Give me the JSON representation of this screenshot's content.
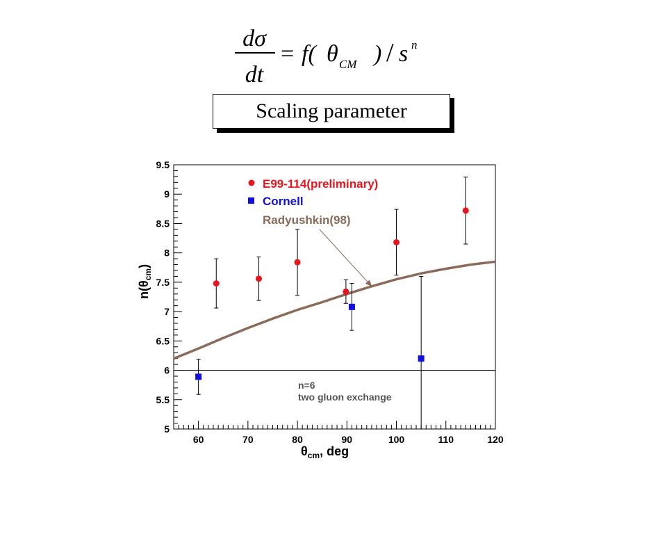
{
  "formula": {
    "numerator": "dσ",
    "denominator": "dt",
    "equals": "=",
    "f_open": "f(",
    "theta": "θ",
    "theta_sub": "CM",
    "close": ")",
    "slash": "/",
    "s": "s",
    "n_sup": "n"
  },
  "slide_title": "Scaling parameter",
  "chart_data": {
    "type": "scatter",
    "xlabel": "θcm, deg",
    "xlabel_parts": {
      "sym": "θ",
      "sub": "cm",
      "rest": ", deg"
    },
    "ylabel": "n(θcm)",
    "ylabel_parts": {
      "pre": "n(",
      "sym": "θ",
      "sub": "cm",
      "post": ")"
    },
    "xlim": [
      55,
      120
    ],
    "ylim": [
      5,
      9.5
    ],
    "xticks": [
      "60",
      "70",
      "80",
      "90",
      "100",
      "110",
      "120"
    ],
    "yticks": [
      "5",
      "5.5",
      "6",
      "6.5",
      "7",
      "7.5",
      "8",
      "8.5",
      "9",
      "9.5"
    ],
    "series": [
      {
        "name": "E99-114",
        "name_suffix": "(preliminary)",
        "marker": "circle",
        "color": "#e8141b",
        "points": [
          {
            "x": 63.6,
            "y": 7.48,
            "err": 0.42
          },
          {
            "x": 72.2,
            "y": 7.56,
            "err": 0.37
          },
          {
            "x": 80.0,
            "y": 7.84,
            "err": 0.56
          },
          {
            "x": 89.8,
            "y": 7.34,
            "err": 0.2
          },
          {
            "x": 100.0,
            "y": 8.18,
            "err": 0.56
          },
          {
            "x": 114.0,
            "y": 8.72,
            "err": 0.57
          }
        ]
      },
      {
        "name": "Cornell",
        "marker": "square",
        "color": "#1010e0",
        "points": [
          {
            "x": 60.0,
            "y": 5.89,
            "err": 0.3
          },
          {
            "x": 91.0,
            "y": 7.08,
            "err": 0.4
          },
          {
            "x": 105.0,
            "y": 6.2,
            "err": 1.4
          }
        ]
      },
      {
        "name": "Radyushkin(98)",
        "marker": "line",
        "color": "#8b6a5a",
        "points": [
          {
            "x": 55,
            "y": 6.2
          },
          {
            "x": 60,
            "y": 6.37
          },
          {
            "x": 65,
            "y": 6.55
          },
          {
            "x": 70,
            "y": 6.72
          },
          {
            "x": 75,
            "y": 6.88
          },
          {
            "x": 80,
            "y": 7.03
          },
          {
            "x": 85,
            "y": 7.16
          },
          {
            "x": 90,
            "y": 7.3
          },
          {
            "x": 95,
            "y": 7.43
          },
          {
            "x": 100,
            "y": 7.55
          },
          {
            "x": 105,
            "y": 7.65
          },
          {
            "x": 110,
            "y": 7.73
          },
          {
            "x": 115,
            "y": 7.8
          },
          {
            "x": 120,
            "y": 7.85
          }
        ]
      }
    ],
    "reference_line": {
      "y": 6,
      "color": "#000000"
    },
    "annotations": [
      {
        "text": "n=6",
        "color": "#555555"
      },
      {
        "text": "two gluon exchange",
        "color": "#555555"
      }
    ],
    "arrow": {
      "from_label": "Radyushkin(98)",
      "to": {
        "x": 95,
        "y": 7.43
      },
      "color": "#8b6a5a"
    },
    "legend_position": "top-left"
  }
}
